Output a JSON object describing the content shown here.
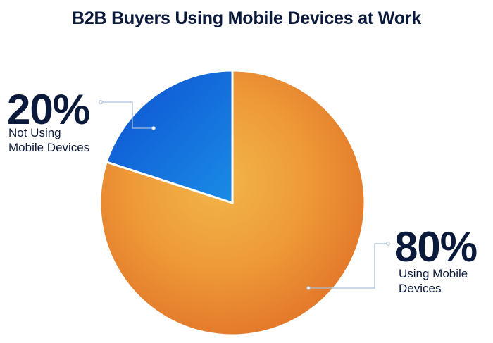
{
  "title": "B2B Buyers Using Mobile Devices at Work",
  "chart_data": {
    "type": "pie",
    "title": "B2B Buyers Using Mobile Devices at Work",
    "slices": [
      {
        "label": "Using Mobile Devices",
        "value": 80,
        "percent_label": "80%",
        "color": "#e8892f"
      },
      {
        "label": "Not Using Mobile Devices",
        "value": 20,
        "percent_label": "20%",
        "color": "#1565d8"
      }
    ],
    "start_angle_deg": 0,
    "direction": "clockwise",
    "legend": "none"
  },
  "labels": {
    "not_using_pct": "20%",
    "not_using_text": "Not Using\nMobile Devices",
    "using_pct": "80%",
    "using_text": "Using Mobile\nDevices"
  }
}
